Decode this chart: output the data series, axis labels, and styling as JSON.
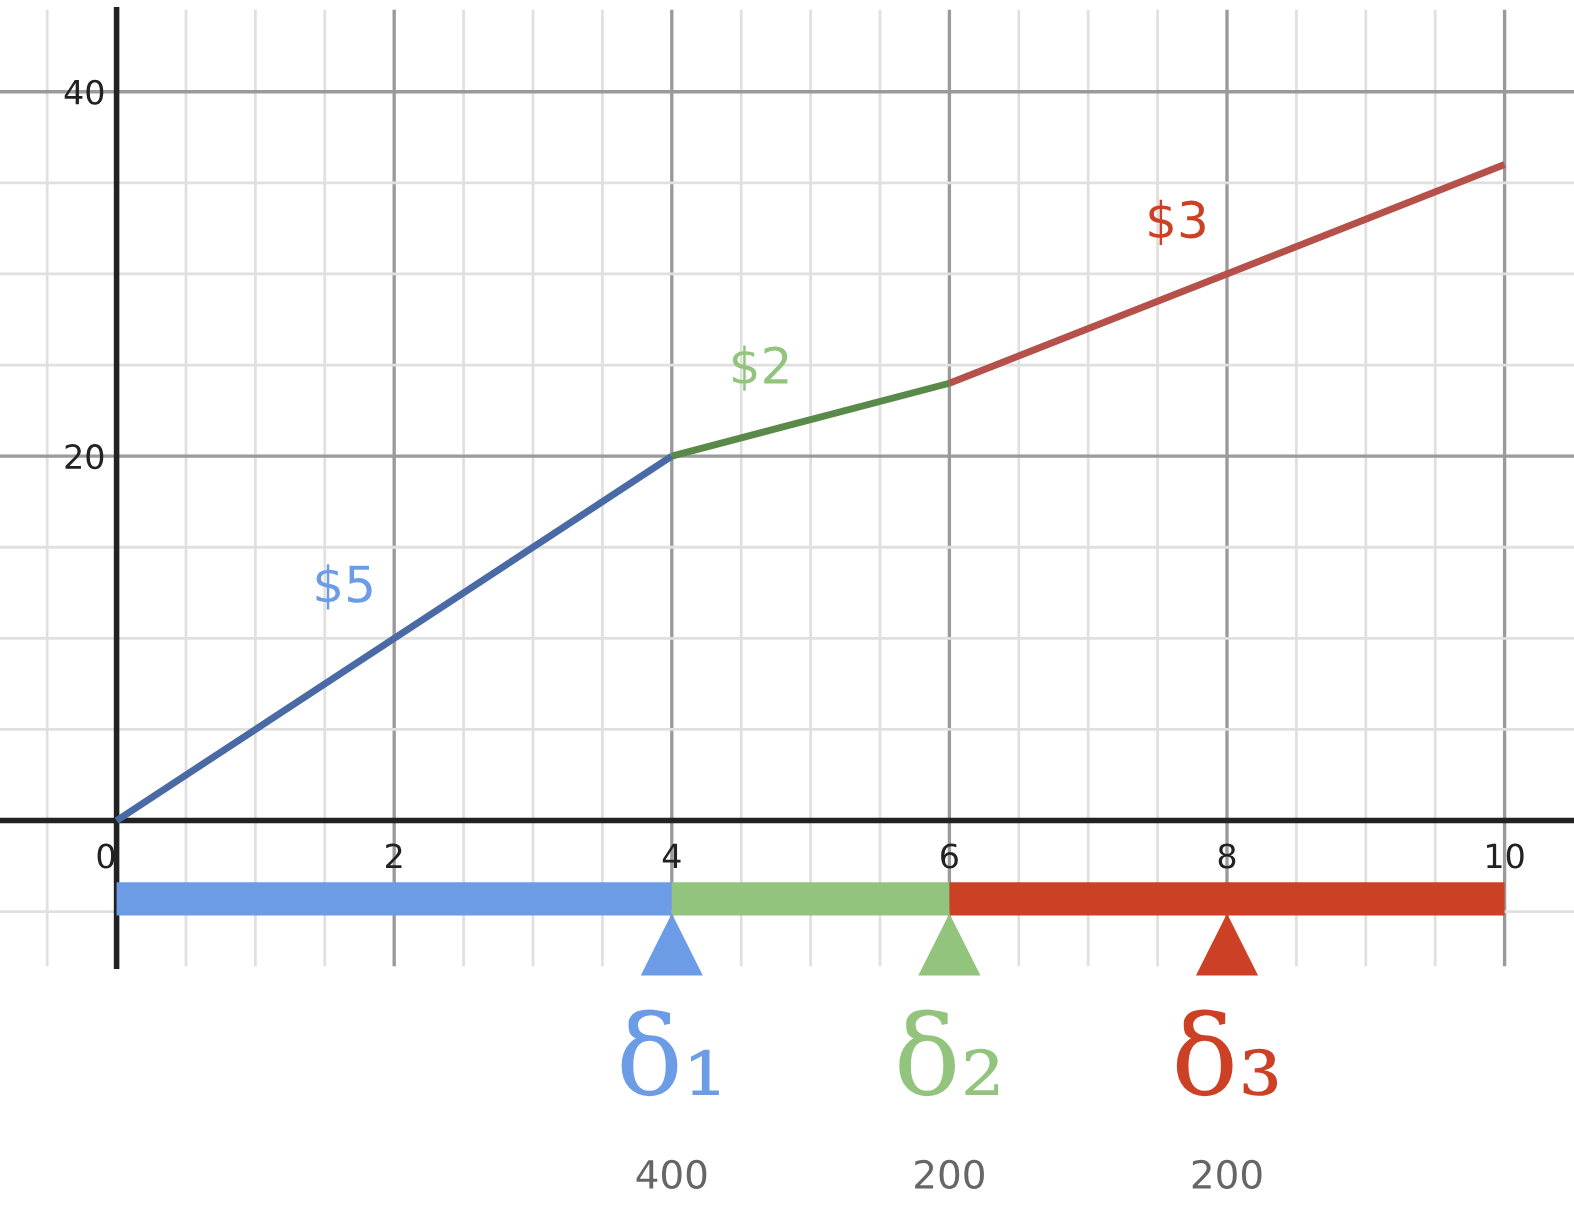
{
  "chart_data": {
    "type": "line",
    "series": [
      {
        "color": "#4a6aa5",
        "x": [
          0,
          4
        ],
        "values": [
          0,
          20
        ]
      },
      {
        "color": "#5a8a4a",
        "x": [
          4,
          6
        ],
        "values": [
          20,
          24
        ]
      },
      {
        "color": "#b5514a",
        "x": [
          6,
          10
        ],
        "values": [
          24,
          36
        ]
      },
      {
        "color": "#6c9ce6",
        "x": [
          0,
          4
        ],
        "values": [
          -4.3,
          -4.3
        ]
      },
      {
        "color": "#93c47d",
        "x": [
          4,
          6
        ],
        "values": [
          -4.3,
          -4.3
        ]
      },
      {
        "color": "#cc4125",
        "x": [
          6,
          10
        ],
        "values": [
          -4.3,
          -4.3
        ]
      },
      {
        "type": "scatter",
        "marker": "triangle",
        "x": [
          4,
          6,
          8
        ],
        "values": [
          -6.8,
          -6.8,
          -6.8
        ],
        "colors": [
          "#6c9ce6",
          "#93c47d",
          "#cc4125"
        ]
      }
    ],
    "annotations": [
      "$5",
      "$2",
      "$3",
      "δ₁",
      "δ₂",
      "δ₃",
      "400",
      "200",
      "200"
    ],
    "xlim": [
      -0.84,
      10.5
    ],
    "ylim": [
      -8,
      44.5
    ],
    "xticks": [
      {
        "value": 0,
        "label": "0"
      },
      2,
      4,
      6,
      8,
      10
    ],
    "yticks": [
      {
        "value": 0,
        "label": null
      },
      20,
      40
    ],
    "grid": true,
    "legend": false
  }
}
